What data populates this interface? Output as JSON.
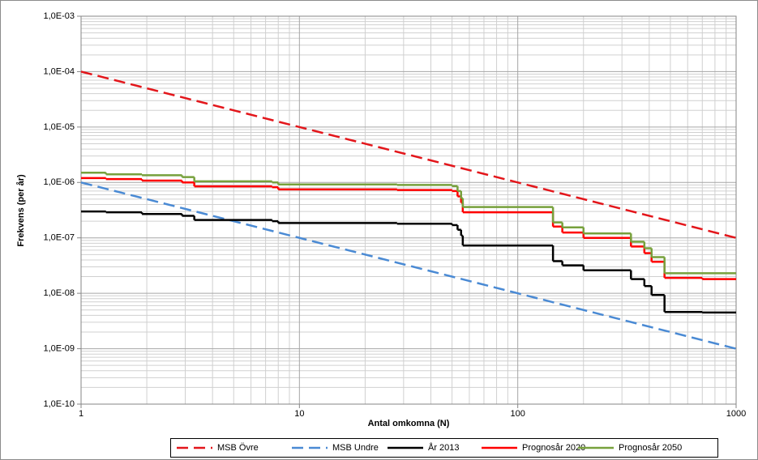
{
  "chart_data": {
    "type": "step",
    "x_label": "Antal omkomna (N)",
    "y_label": "Frekvens (per år)",
    "log_x": true,
    "log_y": true,
    "grid": true,
    "legend": "bottom",
    "xlim": [
      1,
      1000
    ],
    "xticks": [
      1,
      10,
      100,
      1000
    ],
    "ylim": [
      1e-10,
      0.001
    ],
    "yticks": [
      {
        "value": 1e-10,
        "label": "1,0E-10"
      },
      {
        "value": 1e-09,
        "label": "1,0E-09"
      },
      {
        "value": 1e-08,
        "label": "1,0E-08"
      },
      {
        "value": 1e-07,
        "label": "1,0E-07"
      },
      {
        "value": 1e-06,
        "label": "1,0E-06"
      },
      {
        "value": 1e-05,
        "label": "1,0E-05"
      },
      {
        "value": 0.0001,
        "label": "1,0E-04"
      },
      {
        "value": 0.001,
        "label": "1,0E-03"
      }
    ],
    "series": [
      {
        "name": "MSB Övre",
        "color": "#e3161b",
        "dashed": true,
        "step": false,
        "x": [
          1,
          1000
        ],
        "values": [
          0.0001,
          1e-07
        ]
      },
      {
        "name": "MSB Undre",
        "color": "#4a8ad4",
        "dashed": true,
        "step": false,
        "x": [
          1,
          1000
        ],
        "values": [
          1e-06,
          1e-09
        ]
      },
      {
        "name": "År 2013",
        "color": "#000000",
        "dashed": false,
        "step": true,
        "x": [
          1,
          1.3,
          1.9,
          2.9,
          3.3,
          7.5,
          8,
          28,
          50,
          53,
          55,
          56,
          145,
          160,
          200,
          330,
          380,
          410,
          470,
          700,
          1000
        ],
        "values": [
          3e-07,
          2.9e-07,
          2.7e-07,
          2.5e-07,
          2.1e-07,
          2e-07,
          1.85e-07,
          1.8e-07,
          1.7e-07,
          1.4e-07,
          1.1e-07,
          7.3e-08,
          3.8e-08,
          3.2e-08,
          2.6e-08,
          1.8e-08,
          1.35e-08,
          9.3e-09,
          4.6e-09,
          4.5e-09,
          4.5e-09
        ]
      },
      {
        "name": "Prognosår 2020",
        "color": "#ff0000",
        "dashed": false,
        "step": true,
        "x": [
          1,
          1.3,
          1.9,
          2.9,
          3.3,
          7.5,
          8,
          28,
          50,
          53,
          55,
          56,
          145,
          160,
          200,
          330,
          380,
          410,
          470,
          700,
          1000
        ],
        "values": [
          1.2e-06,
          1.15e-06,
          1.08e-06,
          1e-06,
          8.5e-07,
          8.2e-07,
          7.5e-07,
          7.3e-07,
          7e-07,
          5.6e-07,
          4.3e-07,
          2.9e-07,
          1.6e-07,
          1.25e-07,
          1e-07,
          7e-08,
          5.3e-08,
          3.7e-08,
          1.9e-08,
          1.8e-08,
          1.8e-08
        ]
      },
      {
        "name": "Prognosår 2050",
        "color": "#77a13c",
        "dashed": false,
        "step": true,
        "x": [
          1,
          1.3,
          1.9,
          2.9,
          3.3,
          7.5,
          8,
          28,
          50,
          53,
          55,
          56,
          145,
          160,
          200,
          330,
          380,
          410,
          470,
          1000
        ],
        "values": [
          1.5e-06,
          1.4e-06,
          1.35e-06,
          1.25e-06,
          1.05e-06,
          1e-06,
          9.2e-07,
          9e-07,
          8.6e-07,
          7e-07,
          5.2e-07,
          3.6e-07,
          1.9e-07,
          1.55e-07,
          1.2e-07,
          8.5e-08,
          6.5e-08,
          4.5e-08,
          2.3e-08,
          2.3e-08
        ]
      }
    ]
  }
}
